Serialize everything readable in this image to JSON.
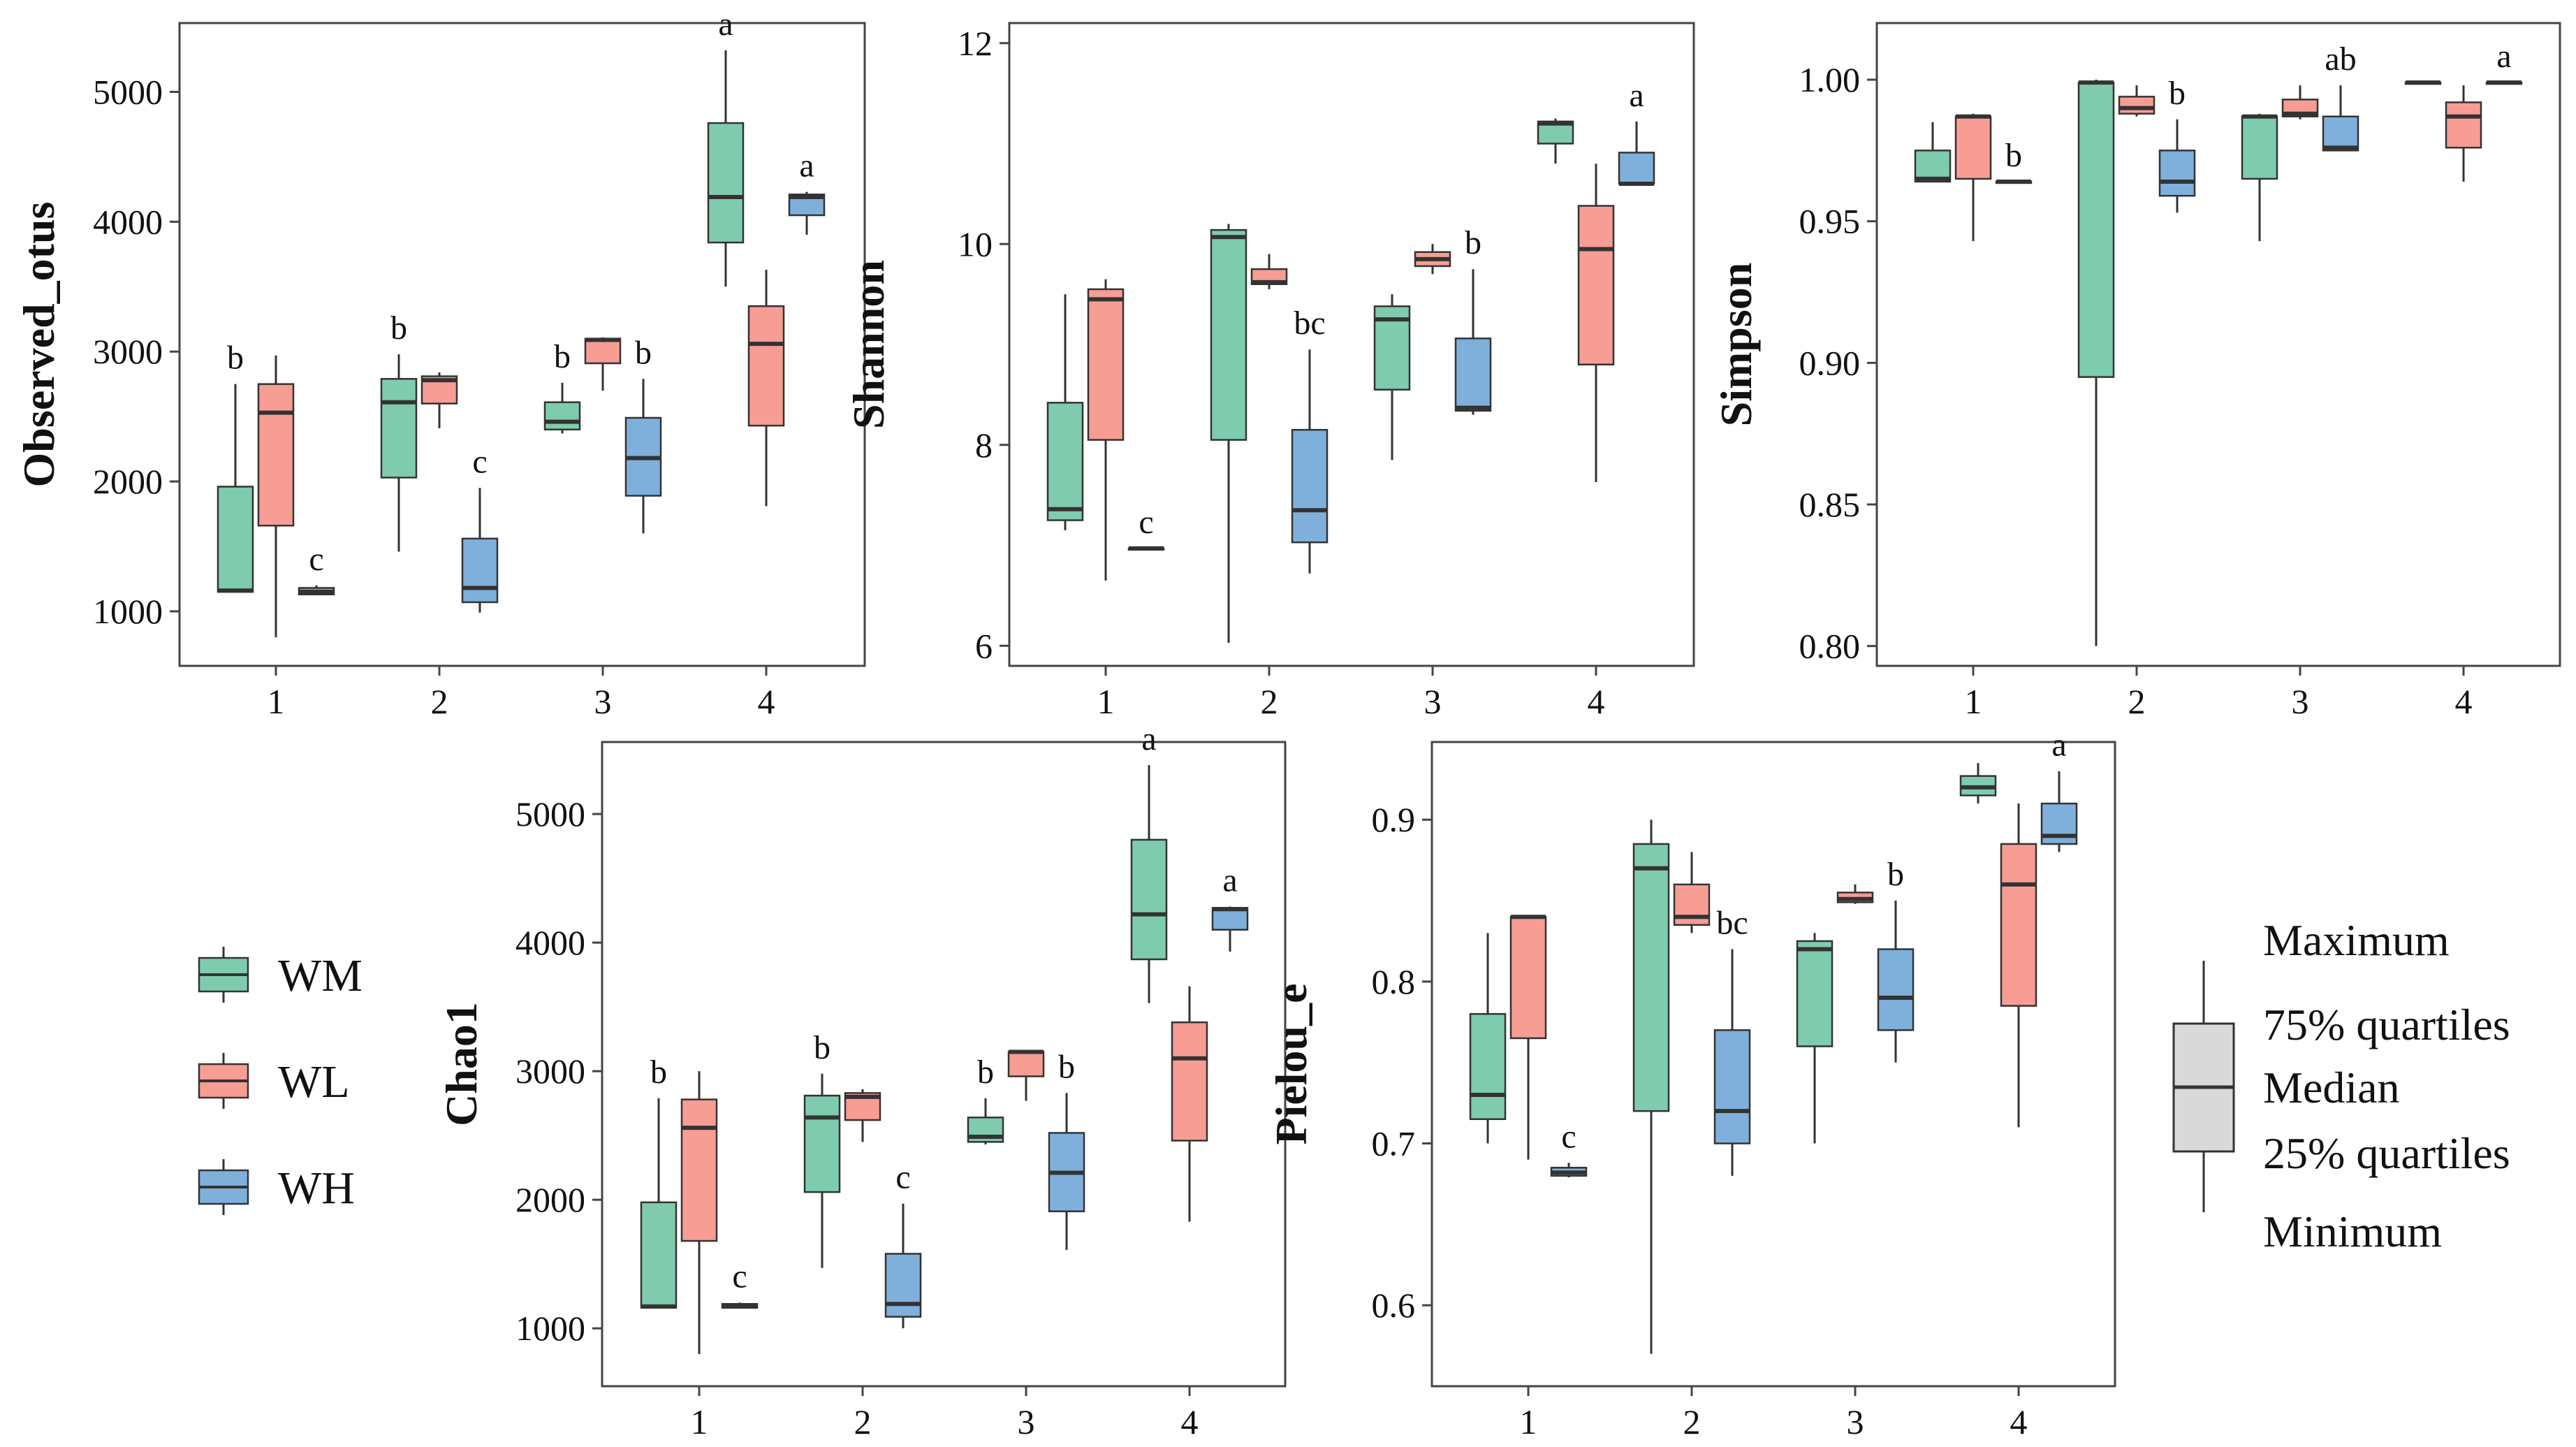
{
  "colors": {
    "WM": "#7fcbae",
    "WL": "#f79d94",
    "WH": "#7fb0dc",
    "key_box": "#d9d9d9",
    "stroke": "#333333"
  },
  "legend": [
    {
      "name": "WM",
      "color": "#7fcbae"
    },
    {
      "name": "WL",
      "color": "#f79d94"
    },
    {
      "name": "WH",
      "color": "#7fb0dc"
    }
  ],
  "boxplot_key": {
    "labels": [
      "Maximum",
      "75% quartiles",
      "Median",
      "25% quartiles",
      "Minimum"
    ]
  },
  "chart_data": [
    {
      "type": "boxplot",
      "ylabel": "Observed_otus",
      "categories": [
        "1",
        "2",
        "3",
        "4"
      ],
      "ylim": [
        580,
        5530
      ],
      "yticks": [
        1000,
        2000,
        3000,
        4000,
        5000
      ],
      "series": [
        {
          "name": "WM",
          "boxes": [
            {
              "min": 1150,
              "q1": 1150,
              "median": 1160,
              "q3": 1960,
              "max": 2750
            },
            {
              "min": 1460,
              "q1": 2030,
              "median": 2610,
              "q3": 2790,
              "max": 2980
            },
            {
              "min": 2370,
              "q1": 2400,
              "median": 2460,
              "q3": 2610,
              "max": 2760
            },
            {
              "min": 3500,
              "q1": 3840,
              "median": 4190,
              "q3": 4760,
              "max": 5320
            }
          ]
        },
        {
          "name": "WL",
          "boxes": [
            {
              "min": 800,
              "q1": 1660,
              "median": 2530,
              "q3": 2750,
              "max": 2970
            },
            {
              "min": 2410,
              "q1": 2600,
              "median": 2780,
              "q3": 2810,
              "max": 2840
            },
            {
              "min": 2700,
              "q1": 2910,
              "median": 3090,
              "q3": 3100,
              "max": 3110
            },
            {
              "min": 1810,
              "q1": 2430,
              "median": 3060,
              "q3": 3350,
              "max": 3630
            }
          ]
        },
        {
          "name": "WH",
          "boxes": [
            {
              "min": 1130,
              "q1": 1130,
              "median": 1150,
              "q3": 1180,
              "max": 1200
            },
            {
              "min": 990,
              "q1": 1070,
              "median": 1180,
              "q3": 1560,
              "max": 1950
            },
            {
              "min": 1600,
              "q1": 1890,
              "median": 2180,
              "q3": 2490,
              "max": 2790
            },
            {
              "min": 3900,
              "q1": 4050,
              "median": 4190,
              "q3": 4210,
              "max": 4230
            }
          ]
        }
      ],
      "annotations": [
        {
          "category": "1",
          "series": "WM",
          "text": "b"
        },
        {
          "category": "1",
          "series": "WH",
          "text": "c"
        },
        {
          "category": "2",
          "series": "WM",
          "text": "b"
        },
        {
          "category": "2",
          "series": "WH",
          "text": "c"
        },
        {
          "category": "3",
          "series": "WM",
          "text": "b"
        },
        {
          "category": "3",
          "series": "WH",
          "text": "b"
        },
        {
          "category": "4",
          "series": "WM",
          "text": "a"
        },
        {
          "category": "4",
          "series": "WH",
          "text": "a"
        }
      ]
    },
    {
      "type": "boxplot",
      "ylabel": "Shannon",
      "categories": [
        "1",
        "2",
        "3",
        "4"
      ],
      "ylim": [
        5.8,
        12.2
      ],
      "yticks": [
        6,
        8,
        10,
        12
      ],
      "series": [
        {
          "name": "WM",
          "boxes": [
            {
              "min": 7.15,
              "q1": 7.25,
              "median": 7.36,
              "q3": 8.42,
              "max": 9.5
            },
            {
              "min": 6.03,
              "q1": 8.05,
              "median": 10.07,
              "q3": 10.14,
              "max": 10.2
            },
            {
              "min": 7.85,
              "q1": 8.55,
              "median": 9.25,
              "q3": 9.38,
              "max": 9.5
            },
            {
              "min": 10.8,
              "q1": 11.0,
              "median": 11.2,
              "q3": 11.22,
              "max": 11.25
            }
          ]
        },
        {
          "name": "WL",
          "boxes": [
            {
              "min": 6.65,
              "q1": 8.05,
              "median": 9.45,
              "q3": 9.55,
              "max": 9.65
            },
            {
              "min": 9.55,
              "q1": 9.6,
              "median": 9.62,
              "q3": 9.75,
              "max": 9.9
            },
            {
              "min": 9.7,
              "q1": 9.78,
              "median": 9.85,
              "q3": 9.92,
              "max": 10.0
            },
            {
              "min": 7.63,
              "q1": 8.8,
              "median": 9.95,
              "q3": 10.38,
              "max": 10.8
            }
          ]
        },
        {
          "name": "WH",
          "boxes": [
            {
              "min": 6.97,
              "q1": 6.97,
              "median": 6.97,
              "q3": 6.97,
              "max": 6.97
            },
            {
              "min": 6.72,
              "q1": 7.03,
              "median": 7.35,
              "q3": 8.15,
              "max": 8.95
            },
            {
              "min": 8.3,
              "q1": 8.34,
              "median": 8.37,
              "q3": 9.06,
              "max": 9.75
            },
            {
              "min": 10.6,
              "q1": 10.6,
              "median": 10.6,
              "q3": 10.91,
              "max": 11.22
            }
          ]
        }
      ],
      "annotations": [
        {
          "category": "1",
          "series": "WH",
          "text": "c"
        },
        {
          "category": "2",
          "series": "WH",
          "text": "bc"
        },
        {
          "category": "3",
          "series": "WH",
          "text": "b"
        },
        {
          "category": "4",
          "series": "WH",
          "text": "a"
        }
      ]
    },
    {
      "type": "boxplot",
      "ylabel": "Simpson",
      "categories": [
        "1",
        "2",
        "3",
        "4"
      ],
      "ylim": [
        0.793,
        1.02
      ],
      "yticks": [
        0.8,
        0.85,
        0.9,
        0.95,
        1.0
      ],
      "ytick_labels": [
        "0.80",
        "0.85",
        "0.90",
        "0.95",
        "1.00"
      ],
      "series": [
        {
          "name": "WM",
          "boxes": [
            {
              "min": 0.964,
              "q1": 0.964,
              "median": 0.965,
              "q3": 0.975,
              "max": 0.985
            },
            {
              "min": 0.8,
              "q1": 0.895,
              "median": 0.999,
              "q3": 0.999,
              "max": 1.0
            },
            {
              "min": 0.943,
              "q1": 0.965,
              "median": 0.987,
              "q3": 0.987,
              "max": 0.988
            },
            {
              "min": 0.999,
              "q1": 0.999,
              "median": 0.999,
              "q3": 0.999,
              "max": 0.999
            }
          ]
        },
        {
          "name": "WL",
          "boxes": [
            {
              "min": 0.943,
              "q1": 0.965,
              "median": 0.987,
              "q3": 0.987,
              "max": 0.988
            },
            {
              "min": 0.987,
              "q1": 0.988,
              "median": 0.99,
              "q3": 0.994,
              "max": 0.998
            },
            {
              "min": 0.986,
              "q1": 0.987,
              "median": 0.988,
              "q3": 0.993,
              "max": 0.998
            },
            {
              "min": 0.964,
              "q1": 0.976,
              "median": 0.987,
              "q3": 0.992,
              "max": 0.998
            }
          ]
        },
        {
          "name": "WH",
          "boxes": [
            {
              "min": 0.964,
              "q1": 0.964,
              "median": 0.964,
              "q3": 0.964,
              "max": 0.964
            },
            {
              "min": 0.953,
              "q1": 0.959,
              "median": 0.964,
              "q3": 0.975,
              "max": 0.986
            },
            {
              "min": 0.975,
              "q1": 0.975,
              "median": 0.976,
              "q3": 0.987,
              "max": 0.998
            },
            {
              "min": 0.999,
              "q1": 0.999,
              "median": 0.999,
              "q3": 0.999,
              "max": 0.999
            }
          ]
        }
      ],
      "annotations": [
        {
          "category": "1",
          "series": "WH",
          "text": "b"
        },
        {
          "category": "2",
          "series": "WH",
          "text": "b"
        },
        {
          "category": "3",
          "series": "WH",
          "text": "ab"
        },
        {
          "category": "4",
          "series": "WH",
          "text": "a"
        }
      ]
    },
    {
      "type": "boxplot",
      "ylabel": "Chao1",
      "categories": [
        "1",
        "2",
        "3",
        "4"
      ],
      "ylim": [
        550,
        5560
      ],
      "yticks": [
        1000,
        2000,
        3000,
        4000,
        5000
      ],
      "series": [
        {
          "name": "WM",
          "boxes": [
            {
              "min": 1160,
              "q1": 1160,
              "median": 1170,
              "q3": 1980,
              "max": 2790
            },
            {
              "min": 1470,
              "q1": 2060,
              "median": 2640,
              "q3": 2810,
              "max": 2980
            },
            {
              "min": 2430,
              "q1": 2450,
              "median": 2490,
              "q3": 2640,
              "max": 2790
            },
            {
              "min": 3530,
              "q1": 3870,
              "median": 4220,
              "q3": 4800,
              "max": 5380
            }
          ]
        },
        {
          "name": "WL",
          "boxes": [
            {
              "min": 800,
              "q1": 1680,
              "median": 2560,
              "q3": 2780,
              "max": 3000
            },
            {
              "min": 2450,
              "q1": 2620,
              "median": 2800,
              "q3": 2830,
              "max": 2860
            },
            {
              "min": 2770,
              "q1": 2960,
              "median": 3150,
              "q3": 3150,
              "max": 3160
            },
            {
              "min": 1830,
              "q1": 2460,
              "median": 3100,
              "q3": 3380,
              "max": 3660
            }
          ]
        },
        {
          "name": "WH",
          "boxes": [
            {
              "min": 1160,
              "q1": 1160,
              "median": 1170,
              "q3": 1190,
              "max": 1200
            },
            {
              "min": 1000,
              "q1": 1090,
              "median": 1190,
              "q3": 1580,
              "max": 1970
            },
            {
              "min": 1610,
              "q1": 1910,
              "median": 2210,
              "q3": 2520,
              "max": 2830
            },
            {
              "min": 3930,
              "q1": 4100,
              "median": 4260,
              "q3": 4270,
              "max": 4280
            }
          ]
        }
      ],
      "annotations": [
        {
          "category": "1",
          "series": "WM",
          "text": "b"
        },
        {
          "category": "1",
          "series": "WH",
          "text": "c"
        },
        {
          "category": "2",
          "series": "WM",
          "text": "b"
        },
        {
          "category": "2",
          "series": "WH",
          "text": "c"
        },
        {
          "category": "3",
          "series": "WM",
          "text": "b"
        },
        {
          "category": "3",
          "series": "WH",
          "text": "b"
        },
        {
          "category": "4",
          "series": "WM",
          "text": "a"
        },
        {
          "category": "4",
          "series": "WH",
          "text": "a"
        }
      ]
    },
    {
      "type": "boxplot",
      "ylabel": "Pielou_e",
      "categories": [
        "1",
        "2",
        "3",
        "4"
      ],
      "ylim": [
        0.55,
        0.948
      ],
      "yticks": [
        0.6,
        0.7,
        0.8,
        0.9
      ],
      "ytick_labels": [
        "0.6",
        "0.7",
        "0.8",
        "0.9"
      ],
      "series": [
        {
          "name": "WM",
          "boxes": [
            {
              "min": 0.7,
              "q1": 0.715,
              "median": 0.73,
              "q3": 0.78,
              "max": 0.83
            },
            {
              "min": 0.57,
              "q1": 0.72,
              "median": 0.87,
              "q3": 0.885,
              "max": 0.9
            },
            {
              "min": 0.7,
              "q1": 0.76,
              "median": 0.82,
              "q3": 0.825,
              "max": 0.83
            },
            {
              "min": 0.91,
              "q1": 0.915,
              "median": 0.92,
              "q3": 0.927,
              "max": 0.935
            }
          ]
        },
        {
          "name": "WL",
          "boxes": [
            {
              "min": 0.69,
              "q1": 0.765,
              "median": 0.84,
              "q3": 0.84,
              "max": 0.84
            },
            {
              "min": 0.83,
              "q1": 0.835,
              "median": 0.84,
              "q3": 0.86,
              "max": 0.88
            },
            {
              "min": 0.848,
              "q1": 0.849,
              "median": 0.851,
              "q3": 0.855,
              "max": 0.86
            },
            {
              "min": 0.71,
              "q1": 0.785,
              "median": 0.86,
              "q3": 0.885,
              "max": 0.91
            }
          ]
        },
        {
          "name": "WH",
          "boxes": [
            {
              "min": 0.679,
              "q1": 0.68,
              "median": 0.682,
              "q3": 0.685,
              "max": 0.688
            },
            {
              "min": 0.68,
              "q1": 0.7,
              "median": 0.72,
              "q3": 0.77,
              "max": 0.82
            },
            {
              "min": 0.75,
              "q1": 0.77,
              "median": 0.79,
              "q3": 0.82,
              "max": 0.85
            },
            {
              "min": 0.88,
              "q1": 0.885,
              "median": 0.89,
              "q3": 0.91,
              "max": 0.93
            }
          ]
        }
      ],
      "annotations": [
        {
          "category": "1",
          "series": "WH",
          "text": "c"
        },
        {
          "category": "2",
          "series": "WH",
          "text": "bc"
        },
        {
          "category": "3",
          "series": "WH",
          "text": "b"
        },
        {
          "category": "4",
          "series": "WH",
          "text": "a"
        }
      ]
    }
  ]
}
